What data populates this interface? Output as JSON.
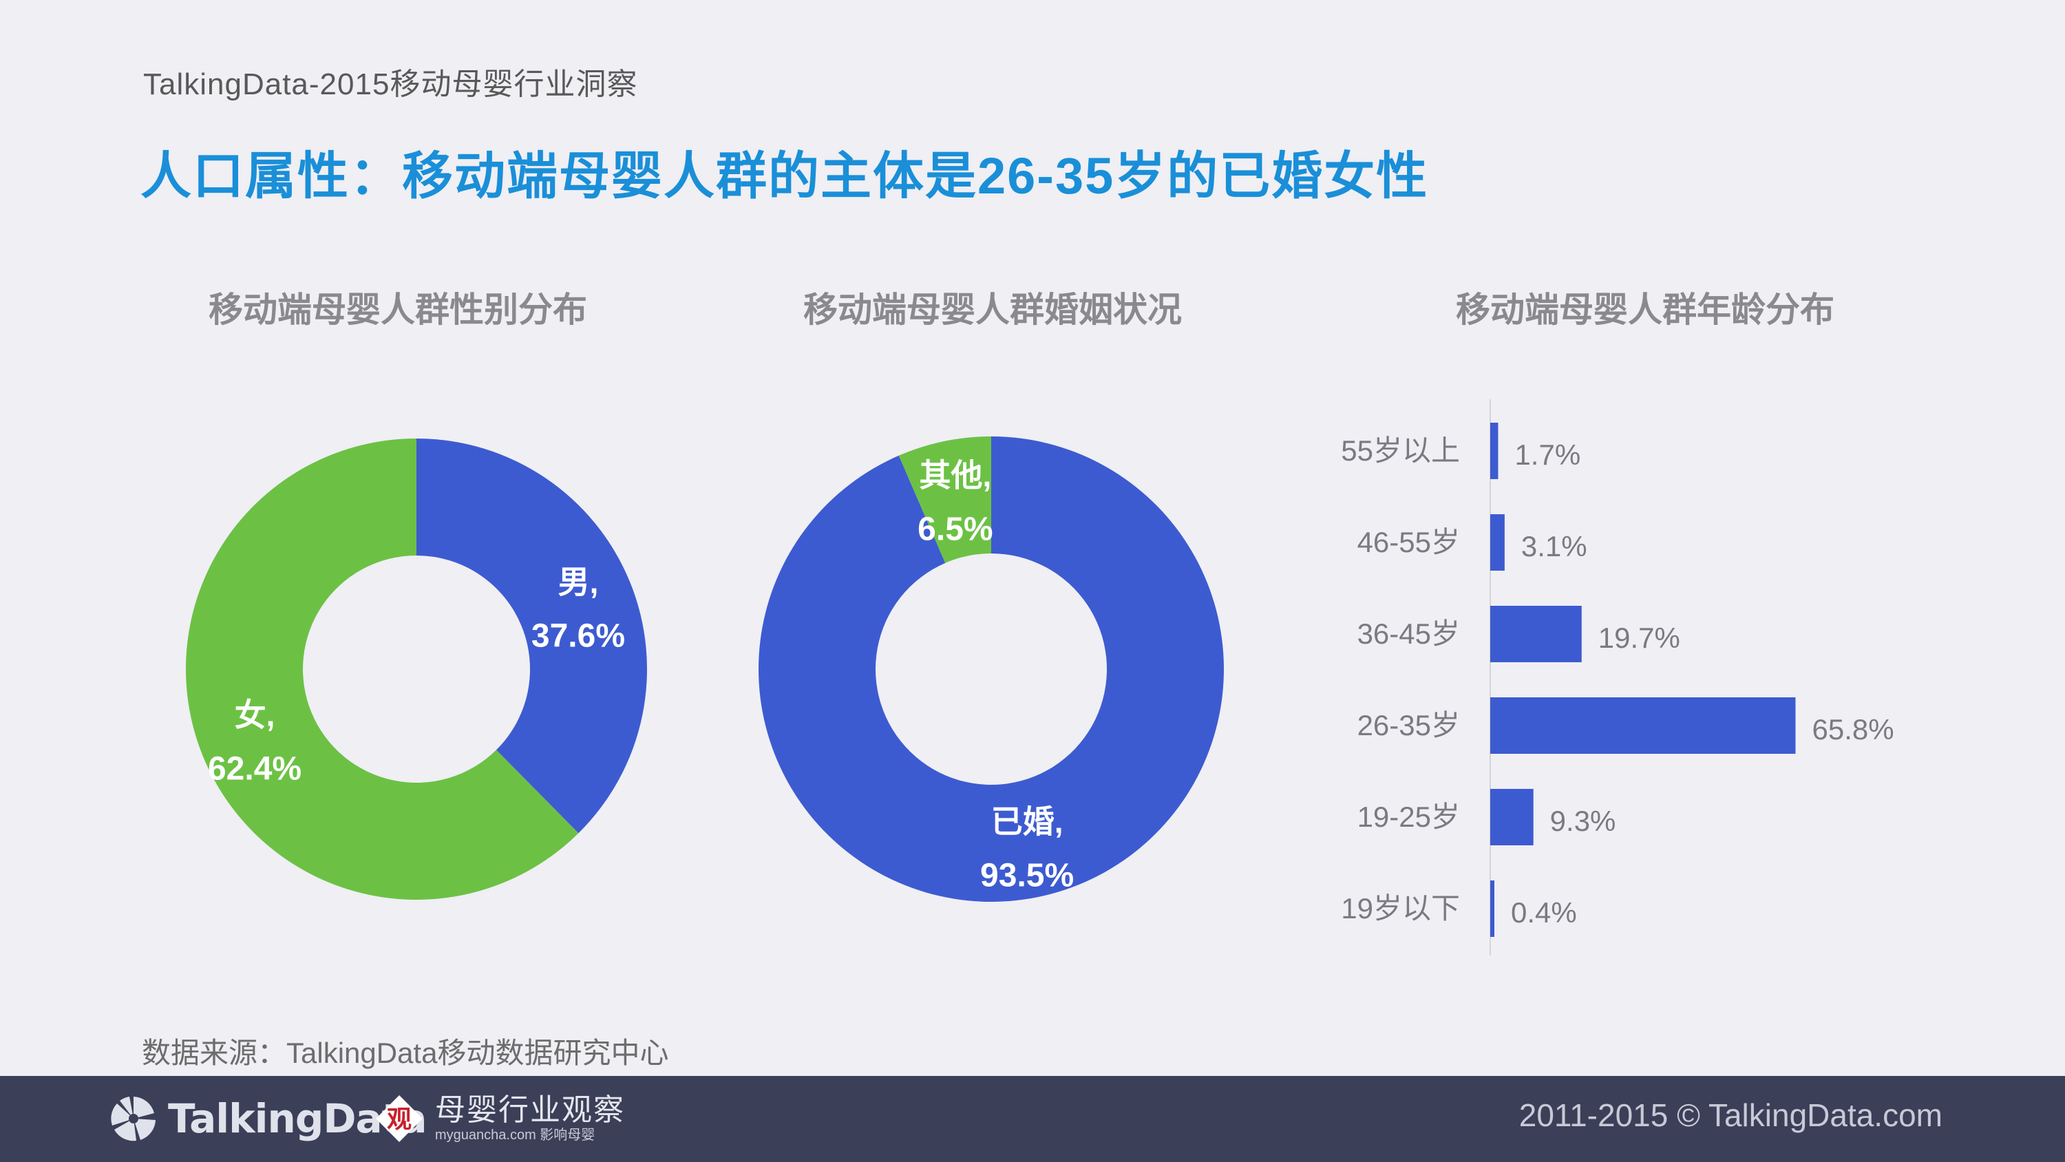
{
  "header": {
    "subtitle": "TalkingData-2015移动母婴行业洞察",
    "title": "人口属性：移动端母婴人群的主体是26-35岁的已婚女性"
  },
  "chart_data": [
    {
      "type": "pie",
      "title": "移动端母婴人群性别分布",
      "labels": [
        "男",
        "女"
      ],
      "values": [
        37.6,
        62.4
      ],
      "display_values": [
        "37.6%",
        "62.4%"
      ],
      "colors": [
        "#3d5bd0",
        "#6cc144"
      ]
    },
    {
      "type": "pie",
      "title": "移动端母婴人群婚姻状况",
      "labels": [
        "已婚",
        "其他"
      ],
      "values": [
        93.5,
        6.5
      ],
      "display_values": [
        "93.5%",
        "6.5%"
      ],
      "colors": [
        "#3d5bd0",
        "#6cc144"
      ]
    },
    {
      "type": "bar",
      "orientation": "horizontal",
      "title": "移动端母婴人群年龄分布",
      "categories": [
        "55岁以上",
        "46-55岁",
        "36-45岁",
        "26-35岁",
        "19-25岁",
        "19岁以下"
      ],
      "values": [
        1.7,
        3.1,
        19.7,
        65.8,
        9.3,
        0.4
      ],
      "display_values": [
        "1.7%",
        "3.1%",
        "19.7%",
        "65.8%",
        "9.3%",
        "0.4%"
      ],
      "color": "#3d5bd0"
    }
  ],
  "source": "数据来源：TalkingData移动数据研究中心",
  "footer": {
    "logo_talkingdata": "TalkingData",
    "logo_muying_cn": "母婴行业观察",
    "logo_muying_en": "myguancha.com 影响母婴",
    "copyright": "2011-2015 © TalkingData.com"
  }
}
